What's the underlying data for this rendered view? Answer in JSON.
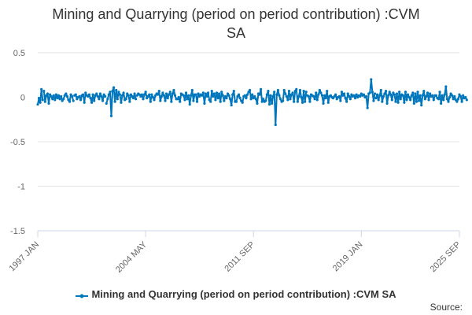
{
  "chart_data": {
    "type": "line",
    "title_lines": [
      "Mining and Quarrying (period on period contribution) :CVM",
      "SA"
    ],
    "xlabel": "",
    "ylabel": "",
    "ylim": [
      -1.5,
      0.5
    ],
    "yticks": [
      0.5,
      0,
      -0.5,
      -1,
      -1.5
    ],
    "ytick_labels": [
      "0.5",
      "0",
      "-0.5",
      "-1",
      "-1.5"
    ],
    "x_start": "1997 JAN",
    "x_end": "2025 SEP",
    "n_points": 345,
    "xtick_indices": [
      0,
      88,
      176,
      264,
      344
    ],
    "xtick_labels": [
      "1997 JAN",
      "2004 MAY",
      "2011 SEP",
      "2019 JAN",
      "2025 SEP"
    ],
    "series": [
      {
        "name": "Mining and Quarrying (period on period contribution) :CVM SA",
        "color": "#0076bc",
        "values": [
          -0.08,
          -0.01,
          -0.06,
          0.09,
          -0.03,
          0.07,
          -0.05,
          0.02,
          0.04,
          -0.07,
          0.03,
          0.01,
          -0.02,
          0.02,
          -0.03,
          0.03,
          -0.01,
          0.02,
          -0.02,
          0.01,
          -0.04,
          -0.02,
          0.02,
          0.04,
          0.01,
          -0.03,
          -0.05,
          0.03,
          0.01,
          -0.04,
          0.02,
          0.03,
          -0.02,
          0.0,
          0.01,
          -0.03,
          0.02,
          0.03,
          -0.06,
          0.05,
          0.02,
          0.01,
          0.03,
          -0.01,
          -0.06,
          0.03,
          -0.04,
          0.02,
          0.04,
          0.01,
          -0.02,
          0.04,
          0.01,
          -0.04,
          0.03,
          0.01,
          -0.07,
          -0.02,
          0.03,
          0.06,
          -0.21,
          0.07,
          0.11,
          -0.05,
          0.08,
          -0.02,
          0.06,
          0.03,
          -0.06,
          0.02,
          0.05,
          -0.03,
          -0.02,
          0.04,
          0.02,
          -0.05,
          0.03,
          0.01,
          -0.01,
          0.04,
          -0.02,
          0.02,
          0.04,
          0.03,
          0.01,
          0.03,
          -0.02,
          0.03,
          0.06,
          -0.01,
          0.01,
          0.03,
          -0.05,
          0.03,
          0.0,
          -0.03,
          0.02,
          0.04,
          0.03,
          0.07,
          -0.04,
          0.01,
          0.05,
          0.02,
          -0.04,
          0.04,
          -0.01,
          0.03,
          0.06,
          -0.05,
          0.04,
          0.08,
          0.02,
          -0.02,
          -0.02,
          0.0,
          -0.05,
          0.04,
          0.03,
          0.02,
          -0.03,
          0.05,
          -0.02,
          0.02,
          -0.08,
          0.02,
          0.08,
          -0.04,
          0.03,
          0.03,
          -0.05,
          0.04,
          0.01,
          0.03,
          0.02,
          0.05,
          -0.07,
          0.04,
          0.01,
          0.05,
          -0.03,
          -0.05,
          0.07,
          0.01,
          0.04,
          -0.03,
          0.05,
          -0.01,
          0.04,
          -0.05,
          0.06,
          0.02,
          -0.04,
          0.01,
          -0.01,
          0.04,
          0.02,
          -0.02,
          -0.09,
          0.03,
          0.07,
          -0.05,
          -0.05,
          0.01,
          0.03,
          -0.01,
          -0.04,
          -0.06,
          0.01,
          0.02,
          -0.01,
          0.03,
          0.06,
          0.08,
          -0.02,
          0.03,
          -0.01,
          0.01,
          -0.02,
          -0.07,
          0.04,
          0.03,
          0.09,
          -0.05,
          -0.02,
          -0.05,
          -0.04,
          0.03,
          0.07,
          -0.08,
          0.02,
          -0.07,
          0.01,
          0.06,
          -0.31,
          0.03,
          0.08,
          0.02,
          -0.02,
          -0.05,
          -0.04,
          0.08,
          0.04,
          0.01,
          -0.03,
          0.07,
          -0.02,
          0.03,
          0.05,
          -0.05,
          0.07,
          0.09,
          -0.05,
          0.01,
          0.08,
          0.0,
          -0.06,
          0.07,
          -0.05,
          0.06,
          0.02,
          0.01,
          -0.05,
          0.03,
          0.02,
          0.01,
          -0.02,
          0.05,
          -0.03,
          0.03,
          0.08,
          0.05,
          0.02,
          -0.07,
          0.02,
          -0.01,
          0.07,
          -0.06,
          0.01,
          0.02,
          0.0,
          -0.01,
          0.01,
          0.03,
          -0.02,
          0.0,
          0.01,
          -0.04,
          0.06,
          0.02,
          0.04,
          -0.01,
          -0.05,
          0.04,
          0.01,
          -0.02,
          0.03,
          0.01,
          0.02,
          -0.01,
          0.03,
          0.0,
          0.02,
          0.01,
          0.04,
          0.02,
          0.03,
          0.0,
          0.01,
          -0.12,
          0.04,
          0.05,
          0.2,
          0.06,
          -0.04,
          0.04,
          -0.01,
          0.03,
          -0.03,
          0.02,
          0.08,
          -0.05,
          0.01,
          0.04,
          0.07,
          -0.07,
          0.02,
          0.06,
          0.03,
          -0.03,
          0.05,
          0.03,
          -0.05,
          0.04,
          -0.06,
          0.06,
          -0.02,
          0.03,
          0.02,
          -0.06,
          0.06,
          -0.03,
          0.03,
          0.0,
          -0.03,
          0.02,
          0.05,
          -0.07,
          0.04,
          -0.05,
          0.06,
          -0.04,
          0.02,
          -0.09,
          0.02,
          0.07,
          -0.02,
          0.01,
          0.05,
          -0.03,
          0.04,
          0.01,
          0.02,
          -0.03,
          0.02,
          0.02,
          -0.01,
          -0.02,
          0.06,
          -0.07,
          0.02,
          -0.03,
          0.03,
          0.12,
          -0.02,
          -0.05,
          0.0,
          0.04,
          0.02,
          -0.02,
          0.01,
          -0.03,
          -0.05,
          -0.02,
          0.03,
          0.01,
          -0.05,
          0.02,
          -0.01,
          0.0,
          -0.03
        ],
        "gaps_after_indices": [
          4,
          18,
          29,
          40,
          55,
          80,
          140,
          219,
          275
        ]
      }
    ],
    "source_label": "Source:"
  }
}
